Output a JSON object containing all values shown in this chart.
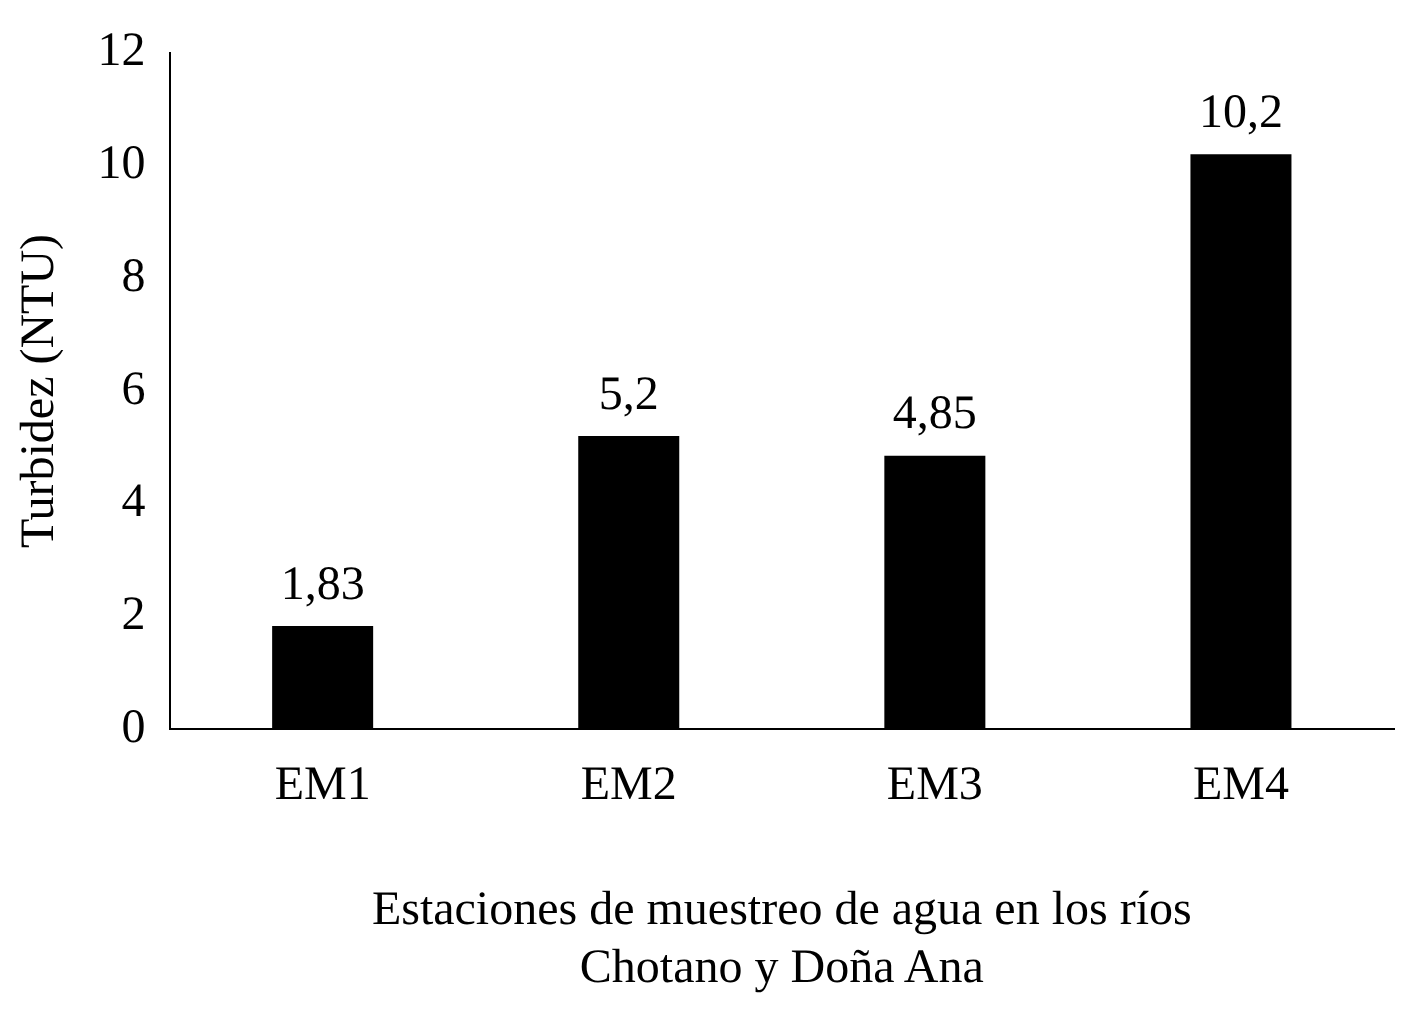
{
  "chart_data": {
    "type": "bar",
    "xlabel": "Estaciones de muestreo de agua en los ríos\nChotano y Doña Ana",
    "ylabel": "Turbidez (NTU)",
    "categories": [
      "EM1",
      "EM2",
      "EM3",
      "EM4"
    ],
    "values": [
      1.83,
      5.2,
      4.85,
      10.2
    ],
    "value_labels": [
      "1,83",
      "5,2",
      "4,85",
      "10,2"
    ],
    "color": "#000000",
    "ylim": [
      0,
      12
    ],
    "yticks": [
      0,
      2,
      4,
      6,
      8,
      10,
      12
    ],
    "grid": false,
    "legend": false
  }
}
